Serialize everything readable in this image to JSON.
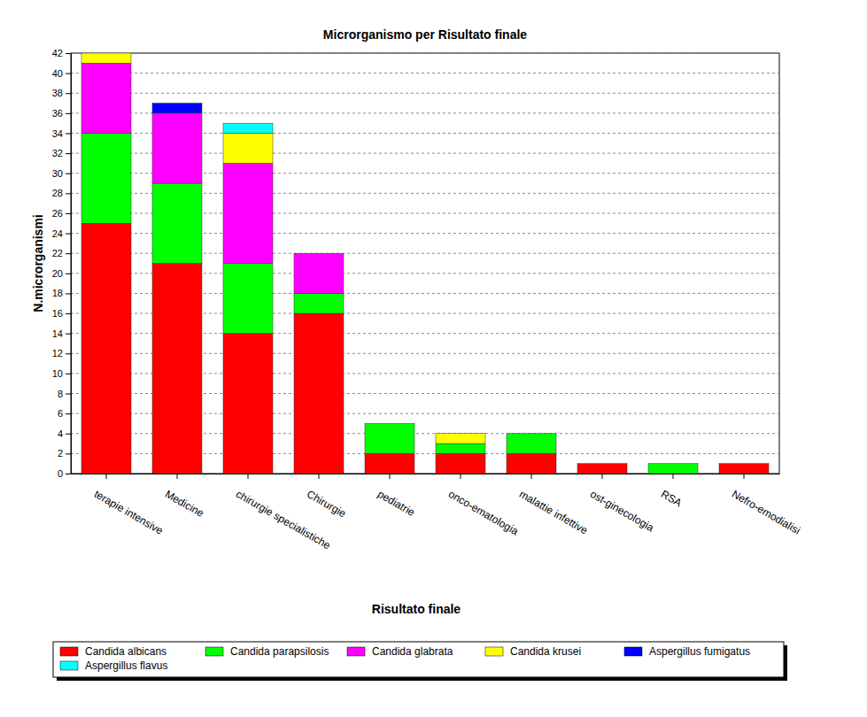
{
  "chart_data": {
    "type": "bar",
    "title": "Microrganismo per Risultato finale",
    "x_label": "Risultato finale",
    "y_label": "N.microrganismi",
    "categories": [
      "terapie intensive",
      "Medicine",
      "chirurgie specialistiche",
      "Chirurgie",
      "pediatrie",
      "onco-ematologia",
      "malattie infettive",
      "ost-ginecologia",
      "RSA",
      "Nefro-emodialisi"
    ],
    "series": [
      {
        "name": "Candida albicans",
        "color": "#ff0000",
        "values": [
          25,
          21,
          14,
          16,
          2,
          2,
          2,
          1,
          0,
          1
        ]
      },
      {
        "name": "Candida parapsilosis",
        "color": "#00ff00",
        "values": [
          9,
          8,
          7,
          2,
          3,
          1,
          2,
          0,
          1,
          0
        ]
      },
      {
        "name": "Candida glabrata",
        "color": "#ff00ff",
        "values": [
          7,
          7,
          10,
          4,
          0,
          0,
          0,
          0,
          0,
          0
        ]
      },
      {
        "name": "Candida krusei",
        "color": "#ffff00",
        "values": [
          1,
          0,
          3,
          0,
          0,
          1,
          0,
          0,
          0,
          0
        ]
      },
      {
        "name": "Aspergillus fumigatus",
        "color": "#0000ff",
        "values": [
          0,
          1,
          0,
          0,
          0,
          0,
          0,
          0,
          0,
          0
        ]
      },
      {
        "name": "Aspergillus flavus",
        "color": "#00ffff",
        "values": [
          0,
          0,
          1,
          0,
          0,
          0,
          0,
          0,
          0,
          0
        ]
      }
    ],
    "ylim": [
      0,
      42
    ],
    "yticks": [
      0,
      2,
      4,
      6,
      8,
      10,
      12,
      14,
      16,
      18,
      20,
      22,
      24,
      26,
      28,
      30,
      32,
      34,
      36,
      38,
      40,
      42
    ],
    "stacked": true,
    "grid": true,
    "legend": "bottom"
  }
}
